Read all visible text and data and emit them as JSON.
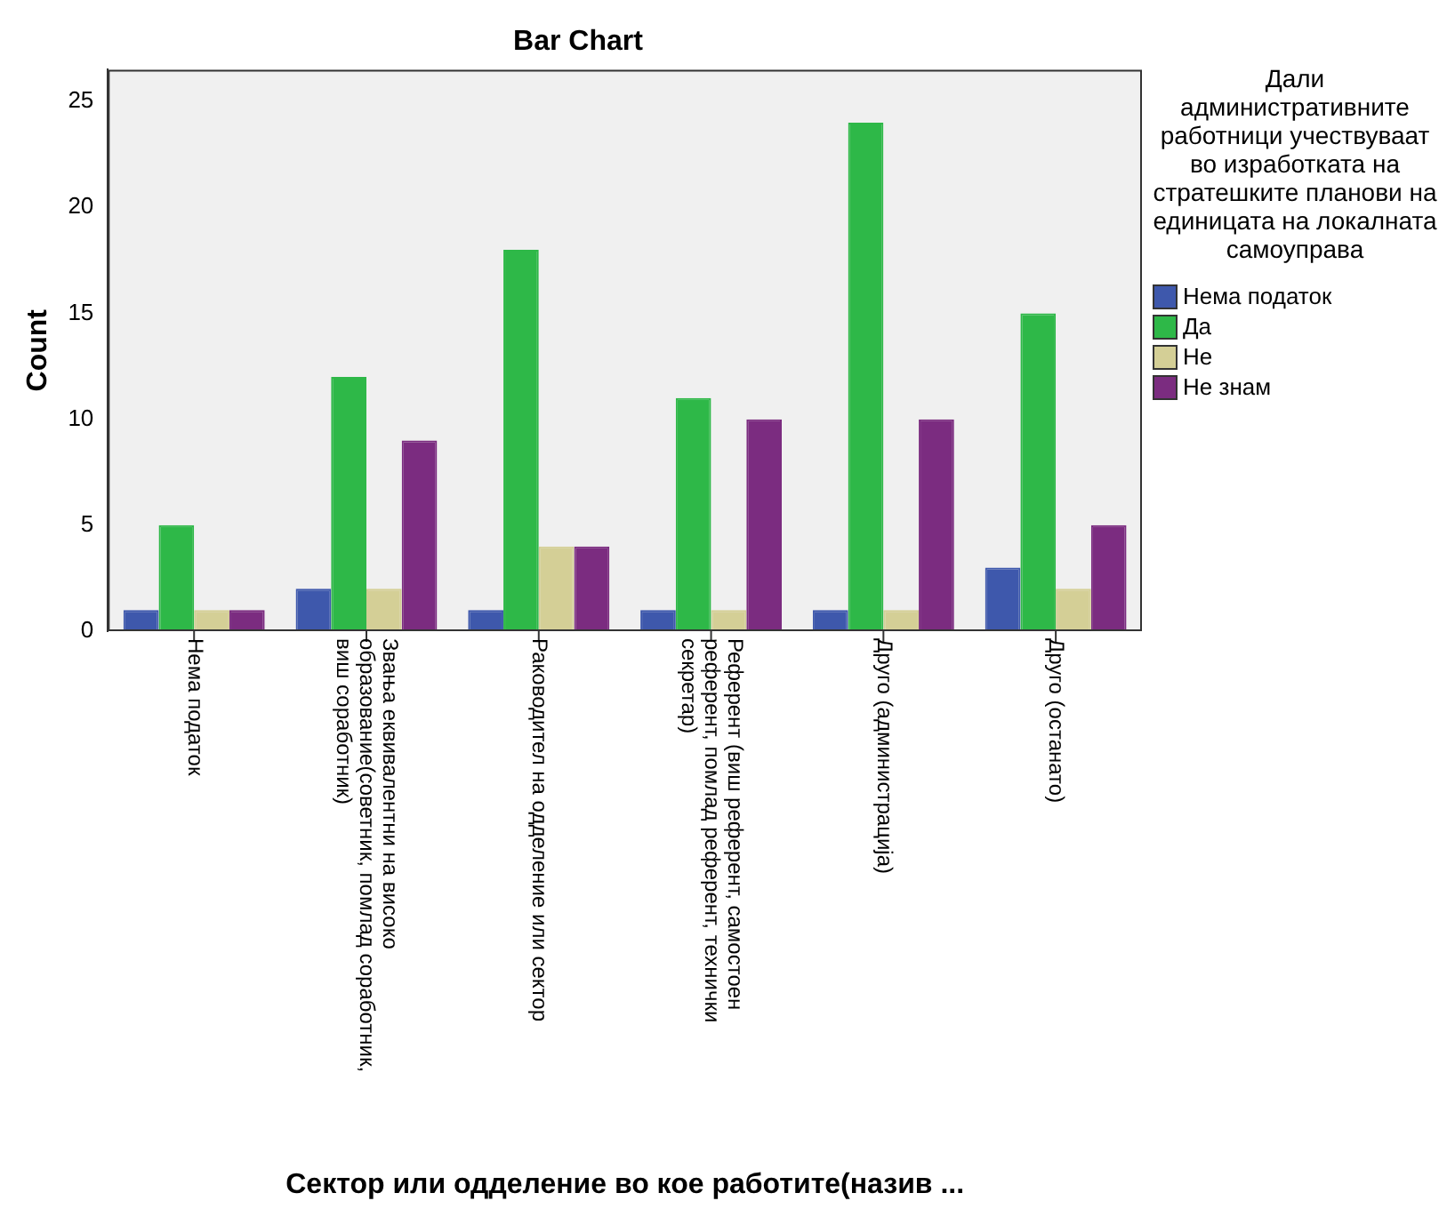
{
  "chart_data": {
    "type": "bar",
    "title": "Bar Chart",
    "xlabel": "Сектор или одделение во кое работите(назив ...",
    "ylabel": "Count",
    "legend_title": "Дали административните работници учествуваат во изработката на стратешките планови на единицата на локалната самоуправа",
    "categories": [
      "Нема податок",
      "Звања еквивалентни на високо образование(советник, помлад соработник, виш соработник)",
      "Раководител на одделение или сектор",
      "Референт (виш референт, самостоен референт, помлад референт, технички секретар)",
      "Друго (администрација)",
      "Друго (останато)"
    ],
    "series": [
      {
        "name": "Нема податок",
        "color": "#3e58ac",
        "values": [
          1,
          2,
          1,
          1,
          1,
          3
        ]
      },
      {
        "name": "Да",
        "color": "#2eb848",
        "values": [
          5,
          12,
          18,
          11,
          24,
          15
        ]
      },
      {
        "name": "Не",
        "color": "#d4cf96",
        "values": [
          1,
          2,
          4,
          1,
          1,
          2
        ]
      },
      {
        "name": "Не знам",
        "color": "#7b2c80",
        "values": [
          1,
          9,
          4,
          10,
          10,
          5
        ]
      }
    ],
    "ylim": [
      0,
      26.5
    ],
    "yticks": [
      0,
      5,
      10,
      15,
      20,
      25
    ],
    "legend": "right"
  }
}
